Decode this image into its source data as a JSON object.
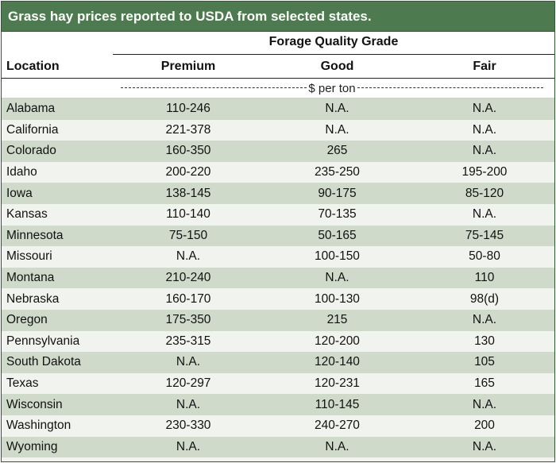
{
  "title": "Grass hay prices reported to USDA from selected states.",
  "header": {
    "group_label": "Forage Quality Grade",
    "location_label": "Location",
    "columns": [
      "Premium",
      "Good",
      "Fair"
    ],
    "units": "$ per ton"
  },
  "rows": [
    {
      "location": "Alabama",
      "premium": "110-246",
      "good": "N.A.",
      "fair": "N.A."
    },
    {
      "location": "California",
      "premium": "221-378",
      "good": "N.A.",
      "fair": "N.A."
    },
    {
      "location": "Colorado",
      "premium": "160-350",
      "good": "265",
      "fair": "N.A."
    },
    {
      "location": "Idaho",
      "premium": "200-220",
      "good": "235-250",
      "fair": "195-200"
    },
    {
      "location": "Iowa",
      "premium": "138-145",
      "good": "90-175",
      "fair": "85-120"
    },
    {
      "location": "Kansas",
      "premium": "110-140",
      "good": "70-135",
      "fair": "N.A."
    },
    {
      "location": "Minnesota",
      "premium": "75-150",
      "good": "50-165",
      "fair": "75-145"
    },
    {
      "location": "Missouri",
      "premium": "N.A.",
      "good": "100-150",
      "fair": "50-80"
    },
    {
      "location": "Montana",
      "premium": "210-240",
      "good": "N.A.",
      "fair": "110"
    },
    {
      "location": "Nebraska",
      "premium": "160-170",
      "good": "100-130",
      "fair": "98(d)"
    },
    {
      "location": "Oregon",
      "premium": "175-350",
      "good": "215",
      "fair": "N.A."
    },
    {
      "location": "Pennsylvania",
      "premium": "235-315",
      "good": "120-200",
      "fair": "130"
    },
    {
      "location": "South Dakota",
      "premium": "N.A.",
      "good": "120-140",
      "fair": "105"
    },
    {
      "location": "Texas",
      "premium": "120-297",
      "good": "120-231",
      "fair": "165"
    },
    {
      "location": "Wisconsin",
      "premium": "N.A.",
      "good": "110-145",
      "fair": "N.A."
    },
    {
      "location": "Washington",
      "premium": "230-330",
      "good": "240-270",
      "fair": "200"
    },
    {
      "location": "Wyoming",
      "premium": "N.A.",
      "good": "N.A.",
      "fair": "N.A."
    }
  ],
  "colors": {
    "title_bg": "#4e7a4f",
    "row_shade": "#cfdacb",
    "row_light": "#f1f4ee"
  }
}
